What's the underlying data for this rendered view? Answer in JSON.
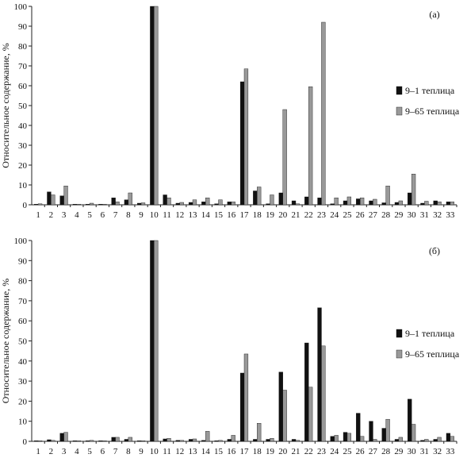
{
  "chart_data": [
    {
      "type": "bar",
      "panel_label": "(а)",
      "ylabel": "Относительное содержание, %",
      "ylim": [
        0,
        100
      ],
      "yticks": [
        0,
        10,
        20,
        30,
        40,
        50,
        60,
        70,
        80,
        90,
        100
      ],
      "categories": [
        "1",
        "2",
        "3",
        "4",
        "5",
        "6",
        "7",
        "8",
        "9",
        "10",
        "11",
        "12",
        "13",
        "14",
        "15",
        "16",
        "17",
        "18",
        "19",
        "20",
        "21",
        "22",
        "23",
        "24",
        "25",
        "26",
        "27",
        "28",
        "29",
        "30",
        "31",
        "32",
        "33"
      ],
      "legend_position": "right",
      "series": [
        {
          "name": "9–1 теплица",
          "color": "#111111",
          "values": [
            0.3,
            6.5,
            4.5,
            0.2,
            0.3,
            0.2,
            3.5,
            2.5,
            0.8,
            100,
            5.0,
            0.8,
            1.2,
            1.5,
            0.5,
            1.5,
            62,
            7.0,
            0.5,
            6.0,
            2.0,
            4.0,
            3.5,
            0.5,
            2.0,
            3.0,
            2.0,
            1.0,
            1.2,
            6.0,
            0.8,
            2.0,
            1.5
          ]
        },
        {
          "name": "9–65 теплица",
          "color": "#999999",
          "values": [
            0.5,
            5.0,
            9.5,
            0.3,
            0.8,
            0.3,
            1.5,
            6.0,
            1.0,
            100,
            3.5,
            1.2,
            2.5,
            3.5,
            2.5,
            1.5,
            68.5,
            9.0,
            5.0,
            48,
            0.5,
            59.5,
            92,
            3.5,
            4.0,
            3.5,
            2.8,
            9.5,
            2.0,
            15.5,
            1.8,
            1.5,
            1.5
          ]
        }
      ]
    },
    {
      "type": "bar",
      "panel_label": "(б)",
      "ylabel": "Относительное содержание, %",
      "ylim": [
        0,
        100
      ],
      "yticks": [
        0,
        10,
        20,
        30,
        40,
        50,
        60,
        70,
        80,
        90,
        100
      ],
      "categories": [
        "1",
        "2",
        "3",
        "4",
        "5",
        "6",
        "7",
        "8",
        "9",
        "10",
        "11",
        "12",
        "13",
        "14",
        "15",
        "16",
        "17",
        "18",
        "19",
        "20",
        "21",
        "22",
        "23",
        "24",
        "25",
        "26",
        "27",
        "28",
        "29",
        "30",
        "31",
        "32",
        "33"
      ],
      "legend_position": "right",
      "series": [
        {
          "name": "9–1 теплица",
          "color": "#111111",
          "values": [
            0.2,
            0.8,
            4.0,
            0.2,
            0.3,
            0.2,
            2.0,
            1.0,
            0.2,
            100,
            1.2,
            0.5,
            1.0,
            0.5,
            0.3,
            1.0,
            34,
            1.0,
            1.0,
            34.5,
            1.0,
            49,
            66.5,
            2.5,
            4.5,
            14,
            10,
            6.5,
            1.0,
            21,
            0.5,
            1.0,
            4.0
          ]
        },
        {
          "name": "9–65 теплица",
          "color": "#999999",
          "values": [
            0.3,
            0.5,
            4.5,
            0.3,
            0.5,
            0.3,
            2.0,
            2.0,
            0.3,
            100,
            1.5,
            0.5,
            1.2,
            5.0,
            0.5,
            3.0,
            43.5,
            9.0,
            1.5,
            25.5,
            0.5,
            27,
            47.5,
            3.0,
            4.0,
            2.5,
            1.0,
            11,
            2.0,
            8.5,
            1.0,
            2.0,
            2.5
          ]
        }
      ]
    }
  ]
}
